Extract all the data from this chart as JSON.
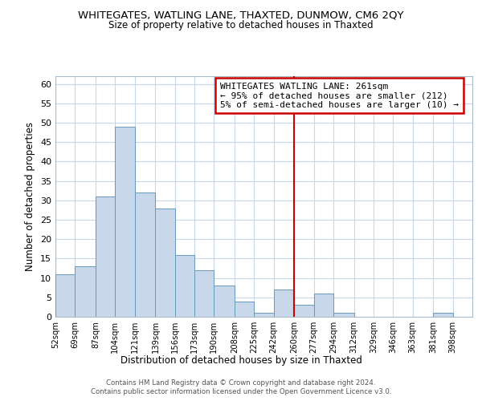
{
  "title1": "WHITEGATES, WATLING LANE, THAXTED, DUNMOW, CM6 2QY",
  "title2": "Size of property relative to detached houses in Thaxted",
  "xlabel": "Distribution of detached houses by size in Thaxted",
  "ylabel": "Number of detached properties",
  "bin_labels": [
    "52sqm",
    "69sqm",
    "87sqm",
    "104sqm",
    "121sqm",
    "139sqm",
    "156sqm",
    "173sqm",
    "190sqm",
    "208sqm",
    "225sqm",
    "242sqm",
    "260sqm",
    "277sqm",
    "294sqm",
    "312sqm",
    "329sqm",
    "346sqm",
    "363sqm",
    "381sqm",
    "398sqm"
  ],
  "bin_edges": [
    52,
    69,
    87,
    104,
    121,
    139,
    156,
    173,
    190,
    208,
    225,
    242,
    260,
    277,
    294,
    312,
    329,
    346,
    363,
    381,
    398,
    415
  ],
  "counts": [
    11,
    13,
    31,
    49,
    32,
    28,
    16,
    12,
    8,
    4,
    1,
    7,
    3,
    6,
    1,
    0,
    0,
    0,
    0,
    1,
    0
  ],
  "bar_color": "#c8d8ea",
  "bar_edge_color": "#6699bb",
  "vline_x": 260,
  "vline_color": "#cc0000",
  "ylim": [
    0,
    62
  ],
  "yticks": [
    0,
    5,
    10,
    15,
    20,
    25,
    30,
    35,
    40,
    45,
    50,
    55,
    60
  ],
  "annotation_title": "WHITEGATES WATLING LANE: 261sqm",
  "annotation_line1": "← 95% of detached houses are smaller (212)",
  "annotation_line2": "5% of semi-detached houses are larger (10) →",
  "footer1": "Contains HM Land Registry data © Crown copyright and database right 2024.",
  "footer2": "Contains public sector information licensed under the Open Government Licence v3.0.",
  "bg_color": "#ffffff",
  "grid_color": "#c8d8ea"
}
